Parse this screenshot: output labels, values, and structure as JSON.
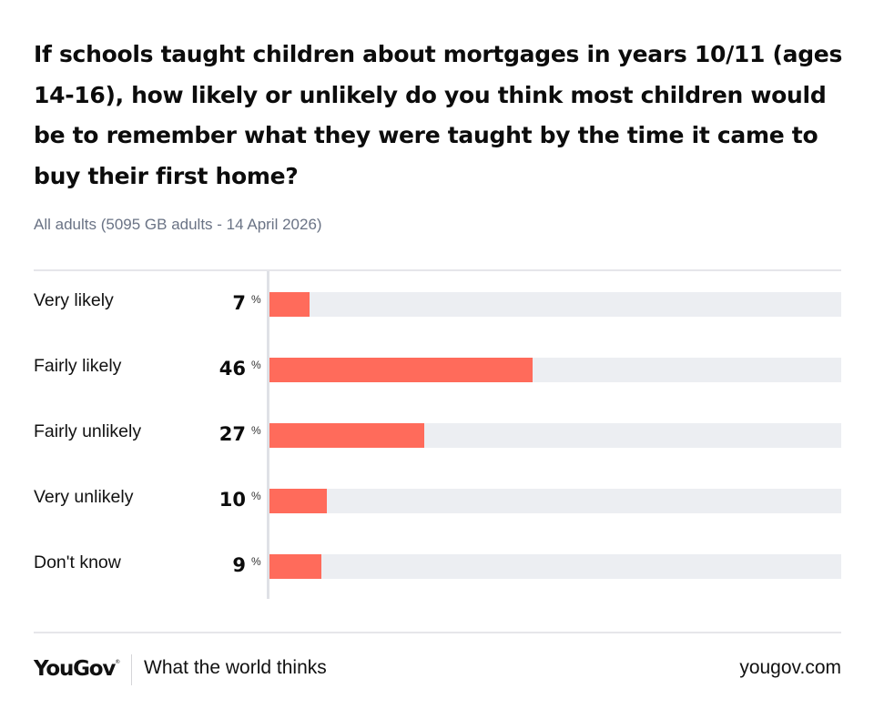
{
  "header": {
    "title": "If schools taught children about mortgages in years 10/11 (ages 14-16), how likely or unlikely do you think most children would be to remember what they were taught by the time it came to buy their first home?",
    "subtitle": "All adults (5095 GB adults - 14 April 2026)"
  },
  "footer": {
    "logo": "YouGov",
    "logo_mark": "®",
    "tagline": "What the world thinks",
    "site": "yougov.com"
  },
  "colors": {
    "bar": "#ff6b5b",
    "track": "#eceef2",
    "subtitle": "#6a7385"
  },
  "chart_data": {
    "type": "bar",
    "orientation": "horizontal",
    "title": "If schools taught children about mortgages in years 10/11 (ages 14-16), how likely or unlikely do you think most children would be to remember what they were taught by the time it came to buy their first home?",
    "subtitle": "All adults (5095 GB adults - 14 April 2026)",
    "categories": [
      "Very likely",
      "Fairly likely",
      "Fairly unlikely",
      "Very unlikely",
      "Don't know"
    ],
    "values": [
      7,
      46,
      27,
      10,
      9
    ],
    "unit": "%",
    "xlim": [
      0,
      100
    ],
    "xlabel": "",
    "ylabel": "",
    "grid": false,
    "legend": "none"
  }
}
